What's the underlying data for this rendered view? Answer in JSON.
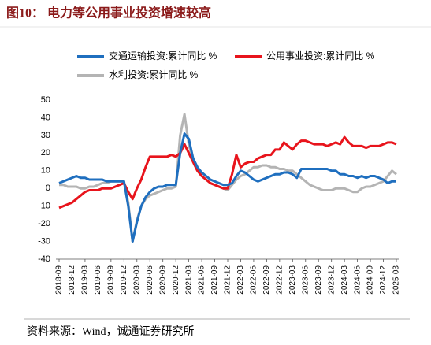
{
  "chart_data": {
    "type": "line",
    "title": "图10：  电力等公用事业投资增速较高",
    "source": "资料来源：Wind，诚通证券研究所",
    "categories": [
      "2018-09",
      null,
      null,
      "2018-12",
      null,
      null,
      "2019-03",
      null,
      null,
      "2019-06",
      null,
      null,
      "2019-09",
      null,
      null,
      "2019-12",
      null,
      null,
      "2020-03",
      null,
      null,
      "2020-06",
      null,
      null,
      "2020-09",
      null,
      null,
      "2020-12",
      null,
      null,
      "2021-03",
      null,
      null,
      "2021-06",
      null,
      null,
      "2021-09",
      null,
      null,
      "2021-12",
      null,
      null,
      "2022-03",
      null,
      null,
      "2022-06",
      null,
      null,
      "2022-09",
      null,
      null,
      "2022-12",
      null,
      null,
      "2023-03",
      null,
      null,
      "2023-06",
      null,
      null,
      "2023-09",
      null,
      null,
      "2023-12",
      null,
      null,
      "2024-03",
      null,
      null,
      "2024-06",
      null,
      null,
      "2024-09",
      null,
      null,
      "2024-12",
      null,
      null,
      "2025-03"
    ],
    "series": [
      {
        "name": "交通运输投资:累计同比  %",
        "color": "#1f6fbf",
        "values": [
          3,
          4,
          5,
          6,
          7,
          6,
          6,
          5,
          5,
          5,
          5,
          4,
          4,
          4,
          4,
          4,
          -10,
          -30,
          -19,
          -10,
          -5,
          -2,
          0,
          1,
          1,
          2,
          2,
          2,
          20,
          31,
          28,
          17,
          12,
          9,
          7,
          5,
          4,
          3,
          2,
          2,
          3,
          7,
          10,
          9,
          7,
          5,
          4,
          5,
          6,
          7,
          8,
          8,
          9,
          9,
          8,
          6,
          11,
          11,
          11,
          11,
          11,
          11,
          11,
          10,
          10,
          8,
          8,
          7,
          7,
          6,
          7,
          6,
          7,
          7,
          6,
          5,
          3,
          4,
          4
        ]
      },
      {
        "name": "公用事业投资:累计同比  %",
        "color": "#e8141c",
        "values": [
          -11,
          -10,
          -9,
          -8,
          -6,
          -4,
          -2,
          -1,
          -1,
          -1,
          0,
          0,
          0,
          1,
          2,
          3,
          -2,
          -6,
          0,
          5,
          12,
          18,
          18,
          18,
          18,
          18,
          19,
          18,
          20,
          25,
          20,
          15,
          10,
          7,
          5,
          3,
          2,
          1,
          0,
          0,
          8,
          19,
          12,
          14,
          15,
          15,
          17,
          18,
          19,
          19,
          22,
          22,
          26,
          24,
          22,
          25,
          27,
          27,
          26,
          25,
          25,
          25,
          24,
          25,
          26,
          25,
          29,
          26,
          24,
          24,
          24,
          23,
          24,
          24,
          24,
          25,
          26,
          26,
          25
        ]
      },
      {
        "name": "水利投资:累计同比  %",
        "color": "#b4b4b4",
        "values": [
          2,
          2,
          1,
          1,
          1,
          0,
          0,
          1,
          1,
          2,
          3,
          3,
          4,
          4,
          4,
          4,
          -8,
          -30,
          -18,
          -10,
          -6,
          -4,
          -3,
          -2,
          -1,
          0,
          0,
          1,
          30,
          42,
          25,
          15,
          10,
          7,
          5,
          3,
          2,
          1,
          0,
          -1,
          2,
          5,
          7,
          8,
          10,
          12,
          12,
          13,
          13,
          12,
          12,
          11,
          11,
          10,
          10,
          8,
          6,
          4,
          2,
          1,
          0,
          -1,
          -1,
          -1,
          0,
          0,
          0,
          -1,
          -2,
          -2,
          0,
          1,
          1,
          2,
          3,
          4,
          7,
          10,
          8
        ]
      }
    ],
    "ylim": [
      -40,
      50
    ],
    "yticks": [
      -40,
      -30,
      -20,
      -10,
      0,
      10,
      20,
      30,
      40,
      50
    ]
  }
}
